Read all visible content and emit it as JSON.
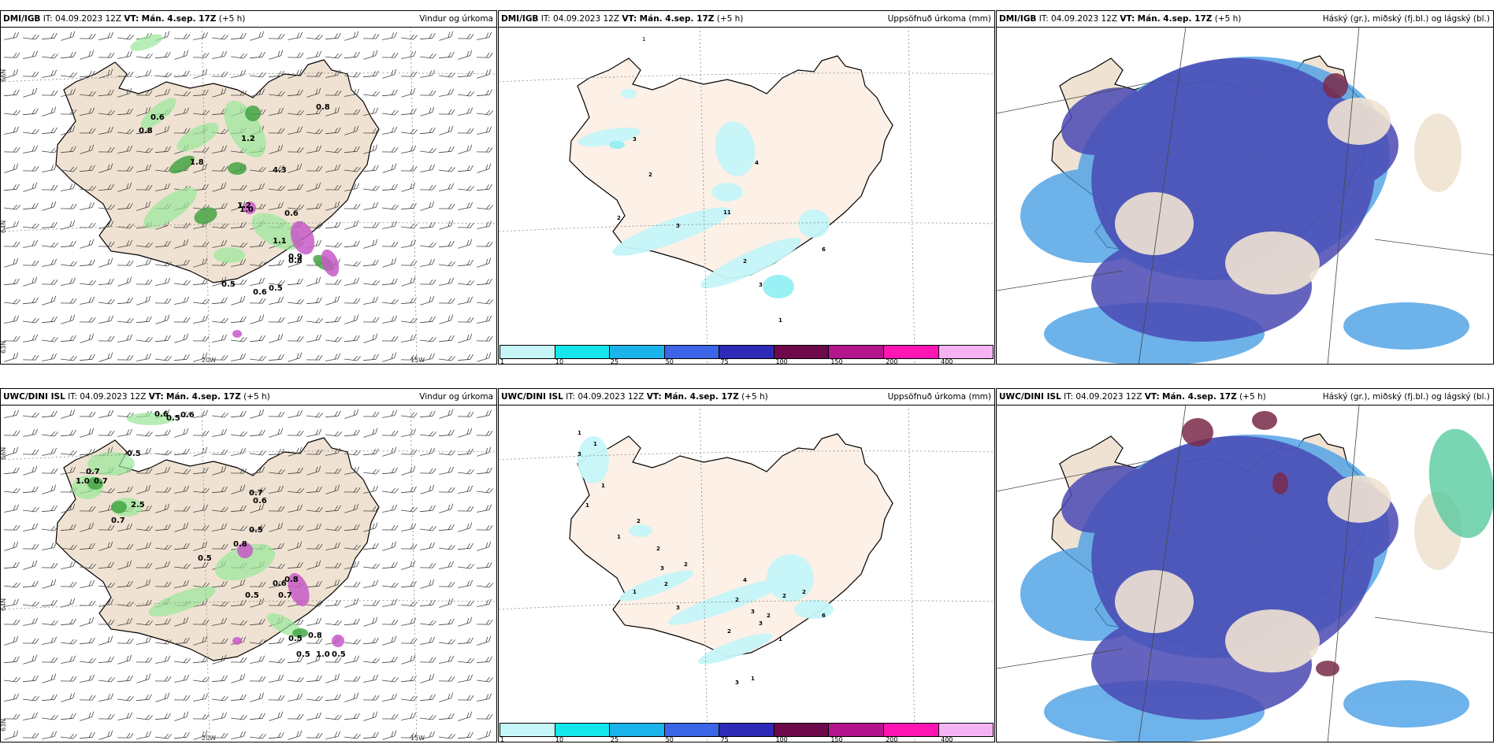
{
  "panels": [
    {
      "id": "p1",
      "model": "DMI/IGB",
      "it_label": "IT:",
      "it": "04.09.2023 12Z",
      "vt_label": "VT:",
      "vt": "Mán. 4.sep. 17Z",
      "lead": "(+5 h)",
      "title": "Vindur og úrkoma",
      "type": "wind"
    },
    {
      "id": "p2",
      "model": "DMI/IGB",
      "it_label": "IT:",
      "it": "04.09.2023 12Z",
      "vt_label": "VT:",
      "vt": "Mán. 4.sep. 17Z",
      "lead": "(+5 h)",
      "title": "Uppsöfnuð úrkoma (mm)",
      "type": "accum"
    },
    {
      "id": "p3",
      "model": "DMI/IGB",
      "it_label": "IT:",
      "it": "04.09.2023 12Z",
      "vt_label": "VT:",
      "vt": "Mán. 4.sep. 17Z",
      "lead": "(+5 h)",
      "title": "Háský (gr.), miðský (fj.bl.) og lágský (bl.)",
      "type": "cloud"
    },
    {
      "id": "p4",
      "model": "UWC/DINI ISL",
      "it_label": "IT:",
      "it": "04.09.2023 12Z",
      "vt_label": "VT:",
      "vt": "Mán. 4.sep. 17Z",
      "lead": "(+5 h)",
      "title": "Vindur og úrkoma",
      "type": "wind"
    },
    {
      "id": "p5",
      "model": "UWC/DINI ISL",
      "it_label": "IT:",
      "it": "04.09.2023 12Z",
      "vt_label": "VT:",
      "vt": "Mán. 4.sep. 17Z",
      "lead": "(+5 h)",
      "title": "Uppsöfnuð úrkoma (mm)",
      "type": "accum"
    },
    {
      "id": "p6",
      "model": "UWC/DINI ISL",
      "it_label": "IT:",
      "it": "04.09.2023 12Z",
      "vt_label": "VT:",
      "vt": "Mán. 4.sep. 17Z",
      "lead": "(+5 h)",
      "title": "Háský (gr.), miðský (fj.bl.) og lágský (bl.)",
      "type": "cloud"
    }
  ],
  "axis_labels": {
    "lon_20w": "20W",
    "lon_15w": "15W",
    "lat_66n": "66N",
    "lat_64n": "64N",
    "lat_63n": "63N"
  },
  "colorbar": {
    "labels": [
      "1",
      "10",
      "25",
      "50",
      "75",
      "100",
      "150",
      "200",
      "400"
    ],
    "colors": [
      "#c6f6f8",
      "#14e6ec",
      "#1ab4ea",
      "#3c64e6",
      "#2e2ab8",
      "#6e0a4c",
      "#b4148c",
      "#ff14b4",
      "#f4b4f4"
    ]
  },
  "colors": {
    "land": "#f0e2d2",
    "land_accum": "#fdf0e6",
    "cloud_high": "#7a2a4a",
    "cloud_mid": "#4a4ab4",
    "cloud_low": "#4aa0e6",
    "precip_light": "#9ae89a",
    "precip_mid": "#3ca03c",
    "precip_dark": "#0a5a1e",
    "snow": "#c85ac8"
  },
  "p1_labels": [
    "0.8",
    "0.6",
    "1.2",
    "0.8",
    "1.8",
    "0.6",
    "4.3",
    "1.0",
    "1.1",
    "0.9",
    "0.5",
    "0.6",
    "0.5",
    "0.8",
    "1.2"
  ],
  "p2_labels": [
    "1",
    "3",
    "2",
    "4",
    "2",
    "11",
    "3",
    "2",
    "6",
    "1",
    "3"
  ],
  "p4_labels": [
    "0.6",
    "0.5",
    "0.6",
    "0.5",
    "0.7",
    "1.0",
    "0.7",
    "2.5",
    "0.7",
    "0.7",
    "0.6",
    "0.5",
    "0.5",
    "0.7",
    "0.5",
    "0.8",
    "0.8",
    "0.6",
    "0.5",
    "0.8",
    "0.5",
    "1.0",
    "0.5"
  ],
  "p5_labels": [
    "1",
    "1",
    "3",
    "1",
    "1",
    "2",
    "1",
    "2",
    "3",
    "2",
    "2",
    "1",
    "3",
    "2",
    "3",
    "4",
    "2",
    "2",
    "1",
    "2",
    "3",
    "2",
    "6",
    "3",
    "1"
  ]
}
